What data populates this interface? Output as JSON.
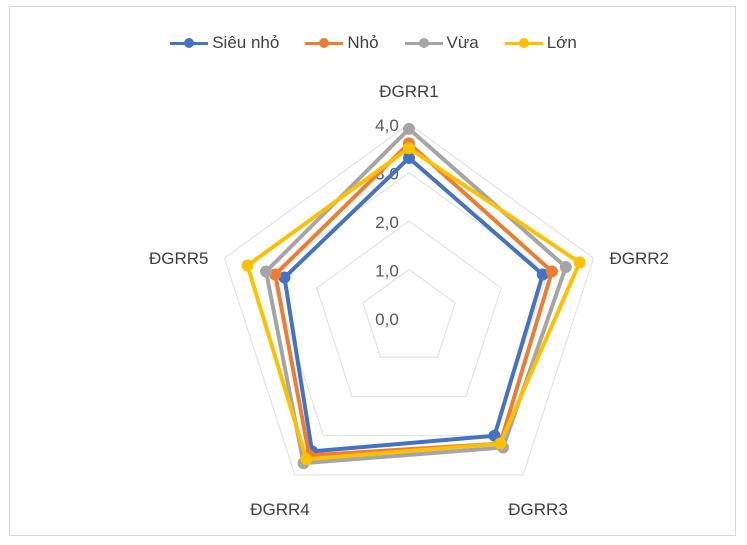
{
  "chart_data": {
    "type": "radar",
    "categories": [
      "ĐGRR1",
      "ĐGRR2",
      "ĐGRR3",
      "ĐGRR4",
      "ĐGRR5"
    ],
    "rlim": [
      0,
      4
    ],
    "tick_labels": [
      "0,0",
      "1,0",
      "2,0",
      "3,0",
      "4,0"
    ],
    "grid": true,
    "legend_position": "top",
    "series": [
      {
        "name": "Siêu nhỏ",
        "color": "#4472C4",
        "values": [
          3.3,
          2.9,
          3.0,
          3.4,
          2.7
        ]
      },
      {
        "name": "Nhỏ",
        "color": "#ED7D31",
        "values": [
          3.6,
          3.1,
          3.2,
          3.5,
          2.9
        ]
      },
      {
        "name": "Vừa",
        "color": "#A5A5A5",
        "values": [
          3.9,
          3.4,
          3.3,
          3.7,
          3.1
        ]
      },
      {
        "name": "Lớn",
        "color": "#FFC000",
        "values": [
          3.5,
          3.7,
          3.2,
          3.6,
          3.5
        ]
      }
    ]
  }
}
